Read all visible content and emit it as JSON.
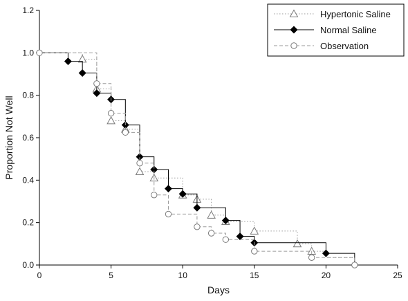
{
  "chart_data": {
    "type": "line",
    "xlabel": "Days",
    "ylabel": "Proportion Not Well",
    "xlim": [
      0,
      25
    ],
    "ylim": [
      0,
      1.2
    ],
    "xticks": [
      0,
      5,
      10,
      15,
      20,
      25
    ],
    "yticks": [
      0.0,
      0.2,
      0.4,
      0.6,
      0.8,
      1.0,
      1.2
    ],
    "xtick_labels": [
      "0",
      "5",
      "10",
      "15",
      "20",
      "25"
    ],
    "ytick_labels": [
      "0.0",
      "0.2",
      "0.4",
      "0.6",
      "0.8",
      "1.0",
      "1.2"
    ],
    "grid": false,
    "legend_position": "top-right",
    "series": [
      {
        "name": "Hypertonic Saline",
        "marker": "triangle-open",
        "line": "dotted",
        "color": "#9a9a9a",
        "steps": [
          [
            0,
            1.0
          ],
          [
            3,
            0.97
          ],
          [
            4,
            0.83
          ],
          [
            5,
            0.68
          ],
          [
            6,
            0.64
          ],
          [
            7,
            0.44
          ],
          [
            8,
            0.41
          ],
          [
            10,
            0.33
          ],
          [
            11,
            0.31
          ],
          [
            12,
            0.235
          ],
          [
            13,
            0.205
          ],
          [
            15,
            0.16
          ],
          [
            18,
            0.1
          ],
          [
            19,
            0.065
          ],
          [
            20,
            0.035
          ],
          [
            22,
            0.0
          ]
        ],
        "markers": [
          [
            3,
            0.97
          ],
          [
            4,
            0.83
          ],
          [
            5,
            0.68
          ],
          [
            6,
            0.64
          ],
          [
            7,
            0.44
          ],
          [
            8,
            0.41
          ],
          [
            10,
            0.33
          ],
          [
            11,
            0.31
          ],
          [
            12,
            0.235
          ],
          [
            13,
            0.205
          ],
          [
            15,
            0.16
          ],
          [
            18,
            0.1
          ],
          [
            19,
            0.065
          ]
        ]
      },
      {
        "name": "Normal Saline",
        "marker": "diamond-filled",
        "line": "solid",
        "color": "#000000",
        "steps": [
          [
            0,
            1.0
          ],
          [
            2,
            0.96
          ],
          [
            3,
            0.905
          ],
          [
            4,
            0.81
          ],
          [
            5,
            0.78
          ],
          [
            6,
            0.66
          ],
          [
            7,
            0.51
          ],
          [
            8,
            0.45
          ],
          [
            9,
            0.36
          ],
          [
            10,
            0.335
          ],
          [
            11,
            0.27
          ],
          [
            13,
            0.21
          ],
          [
            14,
            0.135
          ],
          [
            15,
            0.105
          ],
          [
            20,
            0.055
          ],
          [
            22,
            0.0
          ]
        ],
        "markers": [
          [
            2,
            0.96
          ],
          [
            3,
            0.905
          ],
          [
            4,
            0.81
          ],
          [
            5,
            0.78
          ],
          [
            6,
            0.66
          ],
          [
            7,
            0.51
          ],
          [
            8,
            0.45
          ],
          [
            9,
            0.36
          ],
          [
            10,
            0.335
          ],
          [
            11,
            0.27
          ],
          [
            13,
            0.21
          ],
          [
            14,
            0.135
          ],
          [
            15,
            0.105
          ],
          [
            20,
            0.055
          ]
        ]
      },
      {
        "name": "Observation",
        "marker": "circle-open",
        "line": "dashed",
        "color": "#9a9a9a",
        "steps": [
          [
            0,
            1.0
          ],
          [
            4,
            0.855
          ],
          [
            5,
            0.715
          ],
          [
            6,
            0.625
          ],
          [
            7,
            0.48
          ],
          [
            8,
            0.33
          ],
          [
            9,
            0.24
          ],
          [
            11,
            0.18
          ],
          [
            12,
            0.15
          ],
          [
            13,
            0.12
          ],
          [
            15,
            0.065
          ],
          [
            19,
            0.035
          ],
          [
            22,
            0.0
          ]
        ],
        "markers": [
          [
            0,
            1.0
          ],
          [
            4,
            0.855
          ],
          [
            5,
            0.715
          ],
          [
            6,
            0.625
          ],
          [
            7,
            0.48
          ],
          [
            8,
            0.33
          ],
          [
            9,
            0.24
          ],
          [
            11,
            0.18
          ],
          [
            12,
            0.15
          ],
          [
            13,
            0.12
          ],
          [
            15,
            0.065
          ],
          [
            19,
            0.035
          ],
          [
            22,
            0.0
          ]
        ]
      }
    ]
  }
}
